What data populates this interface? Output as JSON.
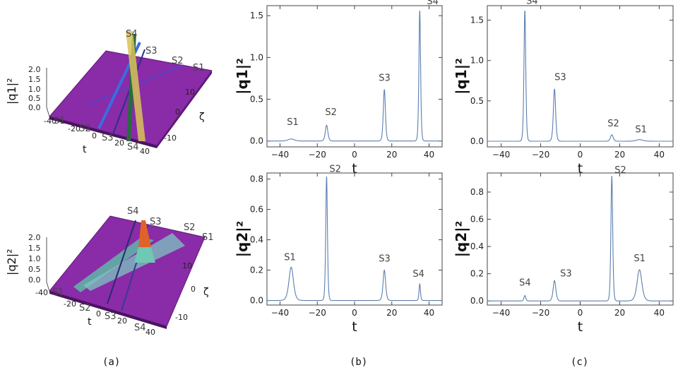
{
  "captions": [
    "(a)",
    "(b)",
    "(c)"
  ],
  "colors": {
    "line": "#5b7fb0",
    "surface": "#8a2ba8",
    "frame": "#444444"
  },
  "panel_a": {
    "top": {
      "zlabel": "|q1|²",
      "zticks": [
        "2.0",
        "1.5",
        "1.0",
        "0.5",
        "0.0"
      ],
      "xticks": [
        "-40",
        "-20",
        "0",
        "20",
        "40"
      ],
      "zetaticks": [
        "10",
        "0",
        "-10"
      ],
      "xlabel": "t",
      "zetalabel": "ζ",
      "soliton_labels": [
        "S4",
        "S3",
        "S2",
        "S1"
      ],
      "base_labels": [
        "S1",
        "S2",
        "S3",
        "S4"
      ]
    },
    "bottom": {
      "zlabel": "|q2|²",
      "zticks": [
        "2.0",
        "1.5",
        "1.0",
        "0.5",
        "0.0"
      ],
      "xticks": [
        "-40",
        "-20",
        "0",
        "20",
        "40"
      ],
      "zetaticks": [
        "10",
        "0",
        "-10"
      ],
      "xlabel": "t",
      "zetalabel": "ζ",
      "soliton_labels": [
        "S4",
        "S3",
        "S2",
        "S1"
      ],
      "base_labels": [
        "S1",
        "S2",
        "S3",
        "S4"
      ]
    }
  },
  "chart_data": [
    {
      "id": "b-top",
      "type": "line",
      "xlabel": "t",
      "ylabel": "|q1|²",
      "xlim": [
        -47,
        47
      ],
      "ylim": [
        -0.07,
        1.62
      ],
      "xticks": [
        -40,
        -20,
        0,
        20,
        40
      ],
      "yticks": [
        0.0,
        0.5,
        1.0,
        1.5
      ],
      "peaks": [
        {
          "label": "S1",
          "t": -34,
          "h": 0.025,
          "w": 2.2
        },
        {
          "label": "S2",
          "t": -15,
          "h": 0.19,
          "w": 0.9
        },
        {
          "label": "S3",
          "t": 16,
          "h": 0.62,
          "w": 0.75
        },
        {
          "label": "S4",
          "t": 35,
          "h": 1.57,
          "w": 0.6
        }
      ]
    },
    {
      "id": "c-top",
      "type": "line",
      "xlabel": "t",
      "ylabel": "|q1|²",
      "xlim": [
        -47,
        47
      ],
      "ylim": [
        -0.07,
        1.68
      ],
      "xticks": [
        -40,
        -20,
        0,
        20,
        40
      ],
      "yticks": [
        0.0,
        0.5,
        1.0,
        1.5
      ],
      "peaks": [
        {
          "label": "S4",
          "t": -28,
          "h": 1.63,
          "w": 0.6
        },
        {
          "label": "S3",
          "t": -13,
          "h": 0.65,
          "w": 0.75
        },
        {
          "label": "S2",
          "t": 16,
          "h": 0.08,
          "w": 0.9
        },
        {
          "label": "S1",
          "t": 30,
          "h": 0.02,
          "w": 2.2
        }
      ]
    },
    {
      "id": "b-bot",
      "type": "line",
      "xlabel": "t",
      "ylabel": "|q2|²",
      "xlim": [
        -47,
        47
      ],
      "ylim": [
        -0.03,
        0.84
      ],
      "xticks": [
        -40,
        -20,
        0,
        20,
        40
      ],
      "yticks": [
        0.0,
        0.2,
        0.4,
        0.6,
        0.8
      ],
      "peaks": [
        {
          "label": "S1",
          "t": -34,
          "h": 0.22,
          "w": 1.6
        },
        {
          "label": "S2",
          "t": -15,
          "h": 0.82,
          "w": 0.6
        },
        {
          "label": "S3",
          "t": 16,
          "h": 0.2,
          "w": 0.9
        },
        {
          "label": "S4",
          "t": 35,
          "h": 0.11,
          "w": 0.5
        }
      ]
    },
    {
      "id": "c-bot",
      "type": "line",
      "xlabel": "t",
      "ylabel": "|q2|²",
      "xlim": [
        -47,
        47
      ],
      "ylim": [
        -0.03,
        0.94
      ],
      "xticks": [
        -40,
        -20,
        0,
        20,
        40
      ],
      "yticks": [
        0.0,
        0.2,
        0.4,
        0.6,
        0.8
      ],
      "peaks": [
        {
          "label": "S4",
          "t": -28,
          "h": 0.04,
          "w": 0.6
        },
        {
          "label": "S3",
          "t": -13,
          "h": 0.15,
          "w": 0.9
        },
        {
          "label": "S2",
          "t": 16,
          "h": 0.92,
          "w": 0.6
        },
        {
          "label": "S1",
          "t": 30,
          "h": 0.23,
          "w": 1.6
        }
      ]
    }
  ]
}
